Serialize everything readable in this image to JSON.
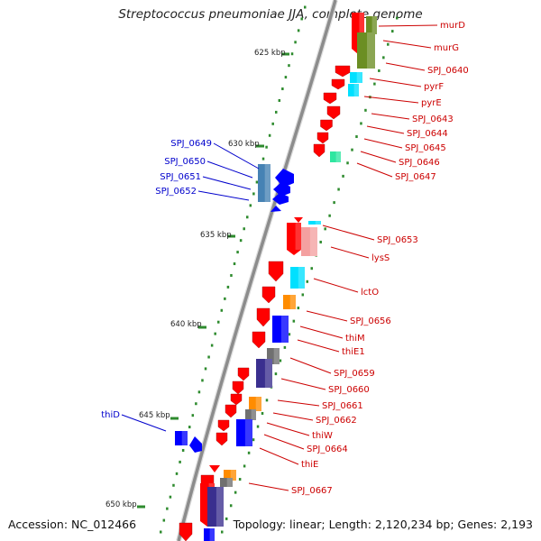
{
  "header": {
    "title": "Streptococcus pneumoniae JJA, complete genome"
  },
  "footer": {
    "accession": "Accession: NC_012466",
    "summary": "Topology: linear; Length: 2,120,234 bp; Genes: 2,193"
  },
  "colors": {
    "backbone": "#8c8c8c",
    "tick": "#2e8b2e",
    "label_right": "#cc0000",
    "label_left": "#0000cc",
    "gene_red": "#ff0000",
    "gene_blue": "#0000ff",
    "gene_olive": "#6b8e23",
    "gene_cyan": "#00e0ff",
    "gene_teal": "#2ee6a0",
    "gene_orange": "#ff8c00",
    "gene_pink": "#f4a0a0",
    "gene_darkblue": "#3a2f8f",
    "gene_gray": "#707070",
    "gene_steel": "#4682b4"
  },
  "scale": {
    "marks": [
      {
        "label": "625 kbp"
      },
      {
        "label": "630 kbp"
      },
      {
        "label": "635 kbp"
      },
      {
        "label": "640 kbp"
      },
      {
        "label": "645 kbp"
      },
      {
        "label": "650 kbp"
      }
    ]
  },
  "genes_right": [
    {
      "label": "murD"
    },
    {
      "label": "murG"
    },
    {
      "label": "SPJ_0640"
    },
    {
      "label": "pyrF"
    },
    {
      "label": "pyrE"
    },
    {
      "label": "SPJ_0643"
    },
    {
      "label": "SPJ_0644"
    },
    {
      "label": "SPJ_0645"
    },
    {
      "label": "SPJ_0646"
    },
    {
      "label": "SPJ_0647"
    },
    {
      "label": "SPJ_0653"
    },
    {
      "label": "lysS"
    },
    {
      "label": "lctO"
    },
    {
      "label": "SPJ_0656"
    },
    {
      "label": "thiM"
    },
    {
      "label": "thiE1"
    },
    {
      "label": "SPJ_0659"
    },
    {
      "label": "SPJ_0660"
    },
    {
      "label": "SPJ_0661"
    },
    {
      "label": "SPJ_0662"
    },
    {
      "label": "thiW"
    },
    {
      "label": "SPJ_0664"
    },
    {
      "label": "thiE"
    },
    {
      "label": "SPJ_0667"
    }
  ],
  "genes_left": [
    {
      "label": "SPJ_0649"
    },
    {
      "label": "SPJ_0650"
    },
    {
      "label": "SPJ_0651"
    },
    {
      "label": "SPJ_0652"
    },
    {
      "label": "thiD"
    }
  ]
}
